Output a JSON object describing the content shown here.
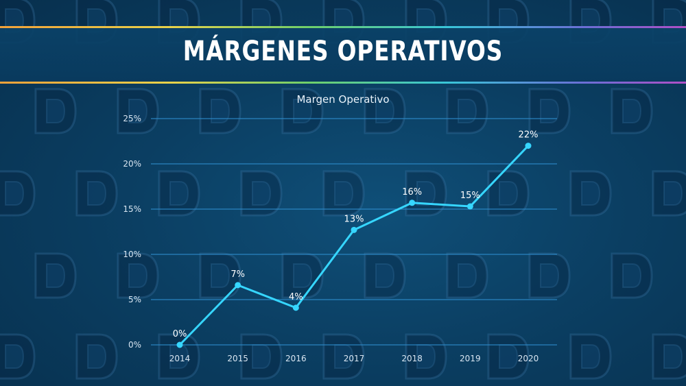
{
  "header": {
    "title": "MÁRGENES OPERATIVOS"
  },
  "colors": {
    "line": "#36d6ff",
    "grid": "#2f8fd0",
    "background": "#0b3f63"
  },
  "watermark": {
    "icon": "d-logo-icon"
  },
  "chart_data": {
    "type": "line",
    "title": "Margen Operativo",
    "xlabel": "",
    "ylabel": "",
    "categories": [
      "2014",
      "2015",
      "2016",
      "2017",
      "2018",
      "2019",
      "2020"
    ],
    "values": [
      0,
      6.6,
      4.1,
      12.7,
      15.7,
      15.3,
      22.0
    ],
    "data_labels": [
      "0%",
      "7%",
      "4%",
      "13%",
      "16%",
      "15%",
      "22%"
    ],
    "ylim": [
      0,
      25
    ],
    "yticks": [
      0,
      5,
      10,
      15,
      20,
      25
    ],
    "ytick_labels": [
      "0%",
      "5%",
      "10%",
      "15%",
      "20%",
      "25%"
    ],
    "grid": true,
    "legend": "none"
  }
}
